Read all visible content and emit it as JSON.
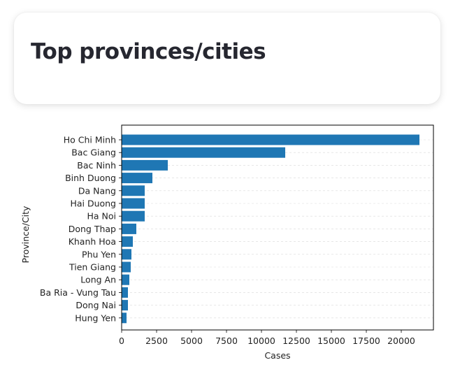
{
  "header": {
    "title": "Top provinces/cities"
  },
  "chart_data": {
    "type": "bar",
    "orientation": "horizontal",
    "title": "",
    "xlabel": "Cases",
    "ylabel": "Province/City",
    "categories": [
      "Ho Chi Minh",
      "Bac Giang",
      "Bac Ninh",
      "Binh Duong",
      "Da Nang",
      "Hai Duong",
      "Ha Noi",
      "Dong Thap",
      "Khanh Hoa",
      "Phu Yen",
      "Tien Giang",
      "Long An",
      "Ba Ria - Vung Tau",
      "Dong Nai",
      "Hung Yen"
    ],
    "values": [
      21300,
      11700,
      3300,
      2200,
      1650,
      1650,
      1650,
      1050,
      800,
      700,
      650,
      550,
      450,
      450,
      350
    ],
    "xlim": [
      0,
      22300
    ],
    "xticks": [
      0,
      2500,
      5000,
      7500,
      10000,
      12500,
      15000,
      17500,
      20000
    ],
    "xtick_labels": [
      "0",
      "2500",
      "5000",
      "7500",
      "10000",
      "12500",
      "15000",
      "17500",
      "20000"
    ],
    "grid": "horizontal dashed",
    "bar_color": "#1f77b4"
  }
}
